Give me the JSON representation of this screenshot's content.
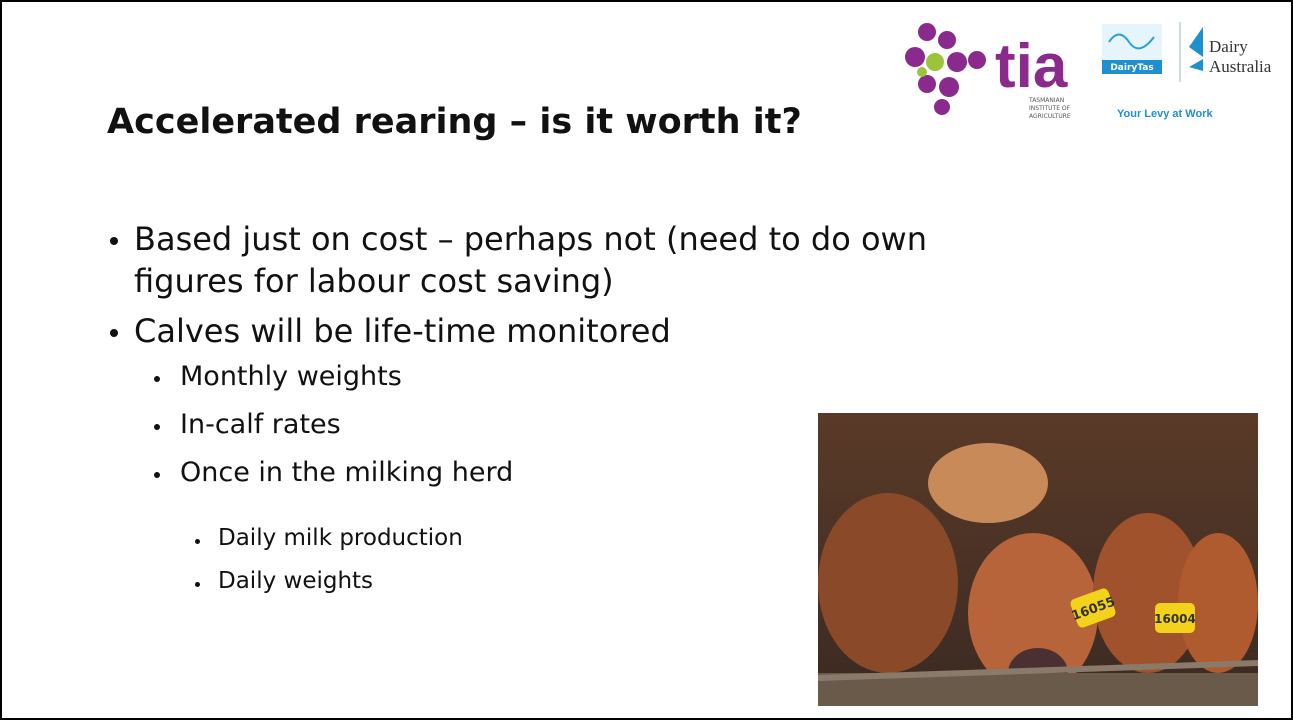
{
  "header": {
    "title": "Accelerated rearing – is it worth it?"
  },
  "logos": {
    "tia": {
      "name": "tia",
      "subtitle": [
        "TASMANIAN",
        "INSTITUTE OF",
        "AGRICULTURE"
      ]
    },
    "dairytas": {
      "name": "DairyTas"
    },
    "dairy_australia": {
      "name": [
        "Dairy",
        "Australia"
      ],
      "tagline": "Your Levy at Work"
    }
  },
  "bullets": [
    {
      "level": 1,
      "lines": [
        "Based just on cost – perhaps not (need to do own",
        "figures for labour cost saving)"
      ]
    },
    {
      "level": 1,
      "lines": [
        "Calves will be life-time monitored"
      ]
    },
    {
      "level": 2,
      "lines": [
        "Monthly weights"
      ]
    },
    {
      "level": 2,
      "lines": [
        "In-calf rates"
      ]
    },
    {
      "level": 2,
      "lines": [
        "Once in the milking herd"
      ]
    },
    {
      "level": 3,
      "lines": [
        "Daily milk production"
      ]
    },
    {
      "level": 3,
      "lines": [
        "Daily weights"
      ]
    }
  ],
  "photo": {
    "tags": [
      "16055",
      "16004"
    ]
  }
}
